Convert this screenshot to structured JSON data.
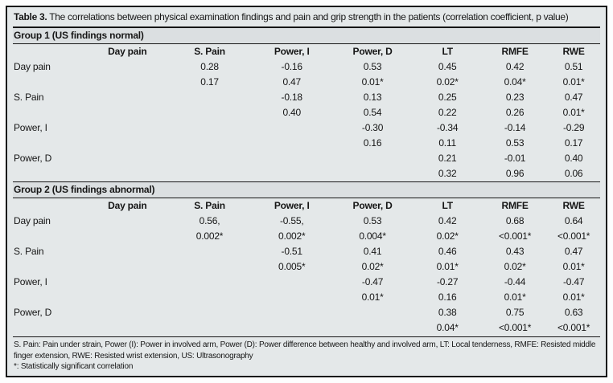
{
  "title": {
    "label": "Table 3.",
    "text": "The correlations between physical examination findings and pain and grip strength in the patients (correlation coefficient, p value)"
  },
  "columns": [
    "",
    "Day pain",
    "S. Pain",
    "Power, I",
    "Power, D",
    "LT",
    "RMFE",
    "RWE"
  ],
  "groups": [
    {
      "name": "Group 1 (US findings normal)",
      "rows": [
        {
          "label": "Day pain",
          "r": [
            "",
            "0.28",
            "-0.16",
            "0.53",
            "0.45",
            "0.42",
            "0.51"
          ],
          "p": [
            "",
            "0.17",
            "0.47",
            "0.01*",
            "0.02*",
            "0.04*",
            "0.01*"
          ]
        },
        {
          "label": "S. Pain",
          "r": [
            "",
            "",
            "-0.18",
            "0.13",
            "0.25",
            "0.23",
            "0.47"
          ],
          "p": [
            "",
            "",
            "0.40",
            "0.54",
            "0.22",
            "0.26",
            "0.01*"
          ]
        },
        {
          "label": "Power, I",
          "r": [
            "",
            "",
            "",
            "-0.30",
            "-0.34",
            "-0.14",
            "-0.29"
          ],
          "p": [
            "",
            "",
            "",
            "0.16",
            "0.11",
            "0.53",
            "0.17"
          ]
        },
        {
          "label": "Power, D",
          "r": [
            "",
            "",
            "",
            "",
            "0.21",
            "-0.01",
            "0.40"
          ],
          "p": [
            "",
            "",
            "",
            "",
            "0.32",
            "0.96",
            "0.06"
          ]
        }
      ]
    },
    {
      "name": "Group 2 (US findings abnormal)",
      "rows": [
        {
          "label": "Day pain",
          "r": [
            "",
            "0.56,",
            "-0.55,",
            "0.53",
            "0.42",
            "0.68",
            "0.64"
          ],
          "p": [
            "",
            "0.002*",
            "0.002*",
            "0.004*",
            "0.02*",
            "<0.001*",
            "<0.001*"
          ]
        },
        {
          "label": "S. Pain",
          "r": [
            "",
            "",
            "-0.51",
            "0.41",
            "0.46",
            "0.43",
            "0.47"
          ],
          "p": [
            "",
            "",
            "0.005*",
            "0.02*",
            "0.01*",
            "0.02*",
            "0.01*"
          ]
        },
        {
          "label": "Power, I",
          "r": [
            "",
            "",
            "",
            "-0.47",
            "-0.27",
            "-0.44",
            "-0.47"
          ],
          "p": [
            "",
            "",
            "",
            "0.01*",
            "0.16",
            "0.01*",
            "0.01*"
          ]
        },
        {
          "label": "Power, D",
          "r": [
            "",
            "",
            "",
            "",
            "0.38",
            "0.75",
            "0.63"
          ],
          "p": [
            "",
            "",
            "",
            "",
            "0.04*",
            "<0.001*",
            "<0.001*"
          ]
        }
      ]
    }
  ],
  "footnotes": [
    "S. Pain: Pain under strain, Power (I): Power in involved arm, Power (D): Power difference between healthy and involved arm, LT: Local tenderness, RMFE: Resisted middle finger extension, RWE: Resisted wrist extension, US: Ultrasonography",
    "*: Statistically significant correlation"
  ],
  "colors": {
    "table_background": "#e4e8e9",
    "group_band_background": "#dbdfe1",
    "rule_color": "#161616",
    "text_color": "#161616"
  }
}
